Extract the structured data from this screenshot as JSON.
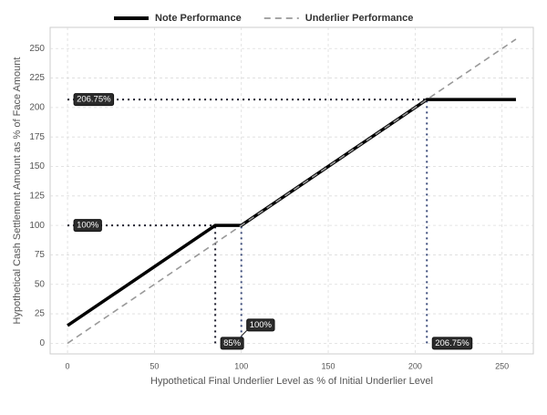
{
  "chart_data": {
    "type": "line",
    "x_label": "Hypothetical Final Underlier Level as % of Initial Underlier Level",
    "y_label": "Hypothetical Cash Settlement Amount as % of Face Amount",
    "xlim": [
      -10,
      268
    ],
    "ylim": [
      -9,
      268
    ],
    "xticks": [
      0,
      50,
      100,
      150,
      200,
      250
    ],
    "yticks": [
      0,
      25,
      50,
      75,
      100,
      125,
      150,
      175,
      200,
      225,
      250
    ],
    "grid": true,
    "legend": "top",
    "series": [
      {
        "name": "Note Performance",
        "color": "#000000",
        "style": "solid",
        "x": [
          0,
          85,
          100,
          206.75,
          258
        ],
        "values": [
          15,
          100,
          100,
          206.75,
          206.75
        ]
      },
      {
        "name": "Underlier Performance",
        "color": "#999999",
        "style": "dashed",
        "x": [
          0,
          258
        ],
        "values": [
          0,
          258
        ]
      }
    ],
    "reference_lines": [
      {
        "axis": "y",
        "value": 206.75,
        "to": 206.75,
        "label": "206.75%",
        "color": "#1c1c2c"
      },
      {
        "axis": "y",
        "value": 100,
        "to": 85,
        "label": "100%",
        "color": "#1c1c2c"
      },
      {
        "axis": "x",
        "value": 85,
        "to": 100,
        "label": "85%",
        "color": "#1c1c2c"
      },
      {
        "axis": "x",
        "value": 100,
        "to": 100,
        "label": "100%",
        "color": "#3a4a7a"
      },
      {
        "axis": "x",
        "value": 206.75,
        "to": 206.75,
        "label": "206.75%",
        "color": "#3a4a7a"
      }
    ]
  }
}
